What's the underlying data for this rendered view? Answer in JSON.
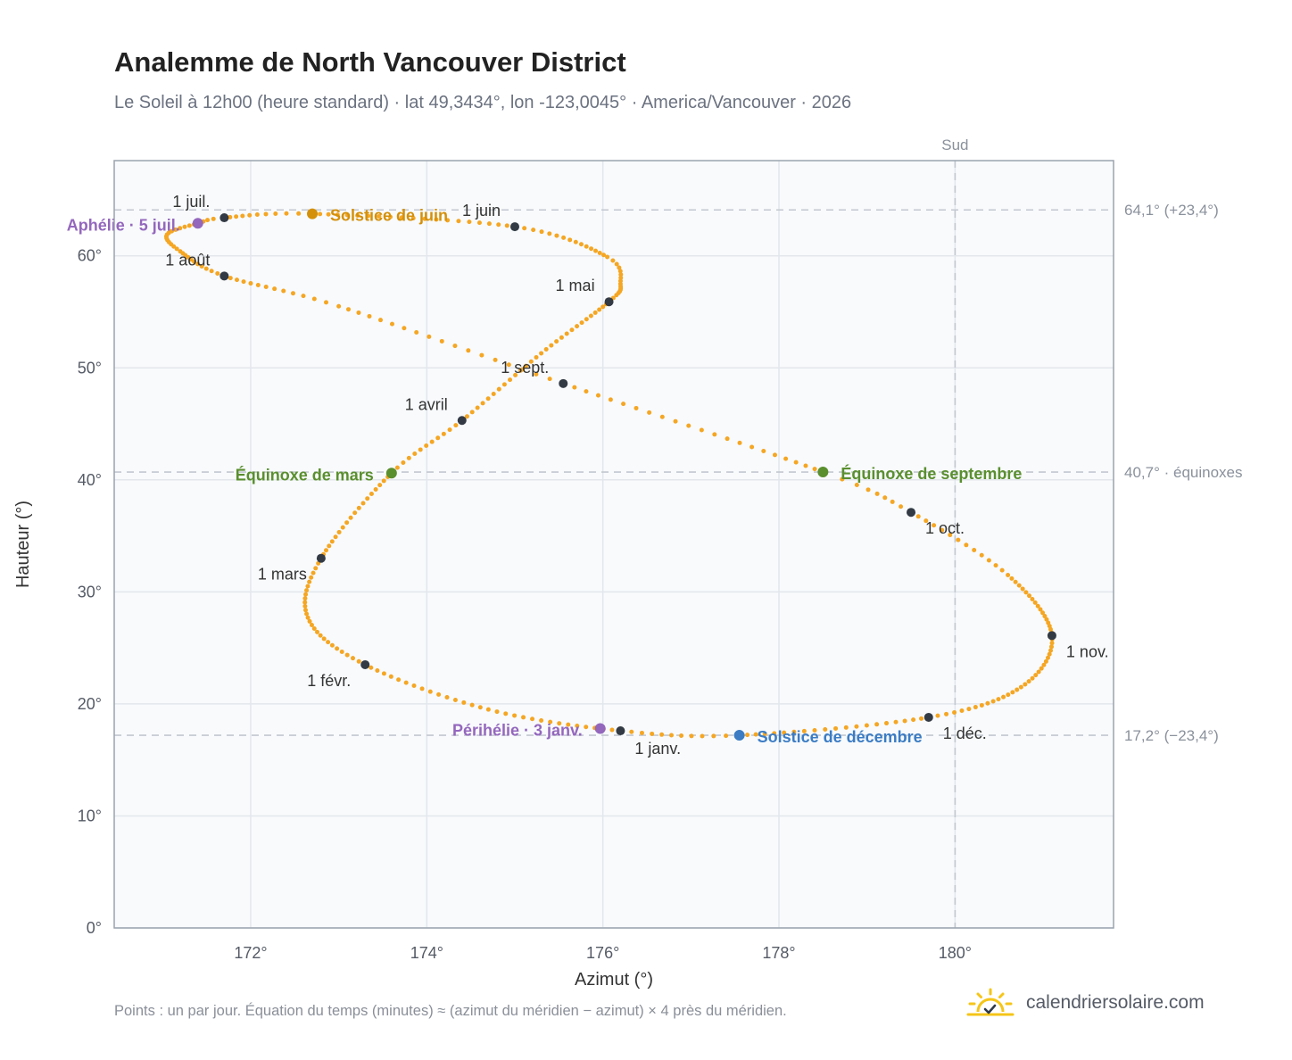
{
  "title": "Analemme de North Vancouver District",
  "subtitle": "Le Soleil à 12h00 (heure standard) · lat 49,3434°, lon -123,0045° · America/Vancouver · 2026",
  "footnote": "Points : un par jour. Équation du temps (minutes) ≈ (azimut du méridien − azimut) × 4 près du méridien.",
  "brand": {
    "name": "calendriersolaire.com",
    "icon": "sun-calendar-icon"
  },
  "colors": {
    "curve": "#f5a623",
    "month_marker": "#333a44",
    "solstice_june": "#d4900a",
    "solstice_december": "#3b7cc4",
    "equinox": "#5a8f2e",
    "apsis": "#9467bd",
    "reference_line": "#c3c8d0",
    "plot_bg": "#f8fafc",
    "grid": "#e3e7ec"
  },
  "chart_data": {
    "type": "scatter",
    "title": "Analemme de North Vancouver District",
    "xlabel": "Azimut (°)",
    "ylabel": "Hauteur (°)",
    "xlim": [
      170.45,
      181.8
    ],
    "ylim": [
      0,
      68.5
    ],
    "xticks": [
      172,
      174,
      176,
      178,
      180
    ],
    "xtick_labels": [
      "172°",
      "174°",
      "176°",
      "178°",
      "180°"
    ],
    "yticks": [
      0,
      10,
      20,
      30,
      40,
      50,
      60
    ],
    "ytick_labels": [
      "0°",
      "10°",
      "20°",
      "30°",
      "40°",
      "50°",
      "60°"
    ],
    "grid": true,
    "south_line": {
      "x": 180,
      "label": "Sud"
    },
    "reference_lines": [
      {
        "y": 64.1,
        "label": "64,1° (+23,4°)"
      },
      {
        "y": 40.7,
        "label": "40,7° · équinoxes"
      },
      {
        "y": 17.2,
        "label": "17,2° (−23,4°)"
      }
    ],
    "curve_anchors": [
      [
        0,
        176.2,
        17.6
      ],
      [
        15,
        174.7,
        19.5
      ],
      [
        31,
        173.3,
        23.5
      ],
      [
        45,
        172.65,
        27.7
      ],
      [
        59,
        172.8,
        33.0
      ],
      [
        78,
        173.6,
        40.6
      ],
      [
        90,
        174.4,
        45.3
      ],
      [
        105,
        175.3,
        51.3
      ],
      [
        120,
        176.07,
        55.9
      ],
      [
        128,
        176.2,
        57.5
      ],
      [
        136,
        176.05,
        59.9
      ],
      [
        151,
        175.0,
        62.6
      ],
      [
        171,
        172.7,
        63.75
      ],
      [
        181,
        171.7,
        63.4
      ],
      [
        185,
        171.4,
        62.9
      ],
      [
        193,
        171.05,
        61.9
      ],
      [
        201,
        171.2,
        60.4
      ],
      [
        212,
        171.7,
        58.2
      ],
      [
        225,
        173.0,
        55.5
      ],
      [
        243,
        175.55,
        48.6
      ],
      [
        265,
        178.5,
        40.7
      ],
      [
        273,
        179.5,
        37.1
      ],
      [
        286,
        180.6,
        31.5
      ],
      [
        304,
        181.1,
        26.1
      ],
      [
        319,
        180.75,
        21.5
      ],
      [
        334,
        179.7,
        18.8
      ],
      [
        354,
        177.55,
        17.2
      ],
      [
        365,
        176.2,
        17.6
      ]
    ],
    "month_markers": [
      {
        "label": "1 janv.",
        "day": 0,
        "x": 176.2,
        "y": 17.6,
        "anchor": "start",
        "dx": 16,
        "dy": 26
      },
      {
        "label": "1 févr.",
        "day": 31,
        "x": 173.3,
        "y": 23.5,
        "anchor": "end",
        "dx": -16,
        "dy": 24
      },
      {
        "label": "1 mars",
        "day": 59,
        "x": 172.8,
        "y": 33.0,
        "anchor": "end",
        "dx": -16,
        "dy": 24
      },
      {
        "label": "1 avril",
        "day": 90,
        "x": 174.4,
        "y": 45.3,
        "anchor": "end",
        "dx": -16,
        "dy": -12
      },
      {
        "label": "1 mai",
        "day": 120,
        "x": 176.07,
        "y": 55.9,
        "anchor": "end",
        "dx": -16,
        "dy": -12
      },
      {
        "label": "1 juin",
        "day": 151,
        "x": 175.0,
        "y": 62.6,
        "anchor": "end",
        "dx": -16,
        "dy": -12
      },
      {
        "label": "1 juil.",
        "day": 181,
        "x": 171.7,
        "y": 63.4,
        "anchor": "end",
        "dx": -16,
        "dy": -12
      },
      {
        "label": "1 août",
        "day": 212,
        "x": 171.7,
        "y": 58.2,
        "anchor": "end",
        "dx": -16,
        "dy": -12
      },
      {
        "label": "1 sept.",
        "day": 243,
        "x": 175.55,
        "y": 48.6,
        "anchor": "end",
        "dx": -16,
        "dy": -12
      },
      {
        "label": "1 oct.",
        "day": 273,
        "x": 179.5,
        "y": 37.1,
        "anchor": "start",
        "dx": 16,
        "dy": 24
      },
      {
        "label": "1 nov.",
        "day": 304,
        "x": 181.1,
        "y": 26.1,
        "anchor": "start",
        "dx": 16,
        "dy": 24
      },
      {
        "label": "1 déc.",
        "day": 334,
        "x": 179.7,
        "y": 18.8,
        "anchor": "start",
        "dx": 16,
        "dy": 24
      }
    ],
    "special_points": [
      {
        "label": "Solstice de juin",
        "x": 172.7,
        "y": 63.75,
        "anchor": "start",
        "dx": 20,
        "dy": 8,
        "color_key": "solstice_june"
      },
      {
        "label": "Solstice de décembre",
        "x": 177.55,
        "y": 17.2,
        "anchor": "start",
        "dx": 20,
        "dy": 8,
        "color_key": "solstice_december"
      },
      {
        "label": "Équinoxe de mars",
        "x": 173.6,
        "y": 40.6,
        "anchor": "end",
        "dx": -20,
        "dy": 8,
        "color_key": "equinox"
      },
      {
        "label": "Équinoxe de septembre",
        "x": 178.5,
        "y": 40.7,
        "anchor": "start",
        "dx": 20,
        "dy": 8,
        "color_key": "equinox"
      },
      {
        "label": "Aphélie · 5 juil.",
        "x": 171.4,
        "y": 62.9,
        "anchor": "end",
        "dx": -20,
        "dy": 8,
        "color_key": "apsis"
      },
      {
        "label": "Périhélie · 3 janv.",
        "x": 175.97,
        "y": 17.8,
        "anchor": "end",
        "dx": -20,
        "dy": 8,
        "color_key": "apsis"
      }
    ]
  }
}
